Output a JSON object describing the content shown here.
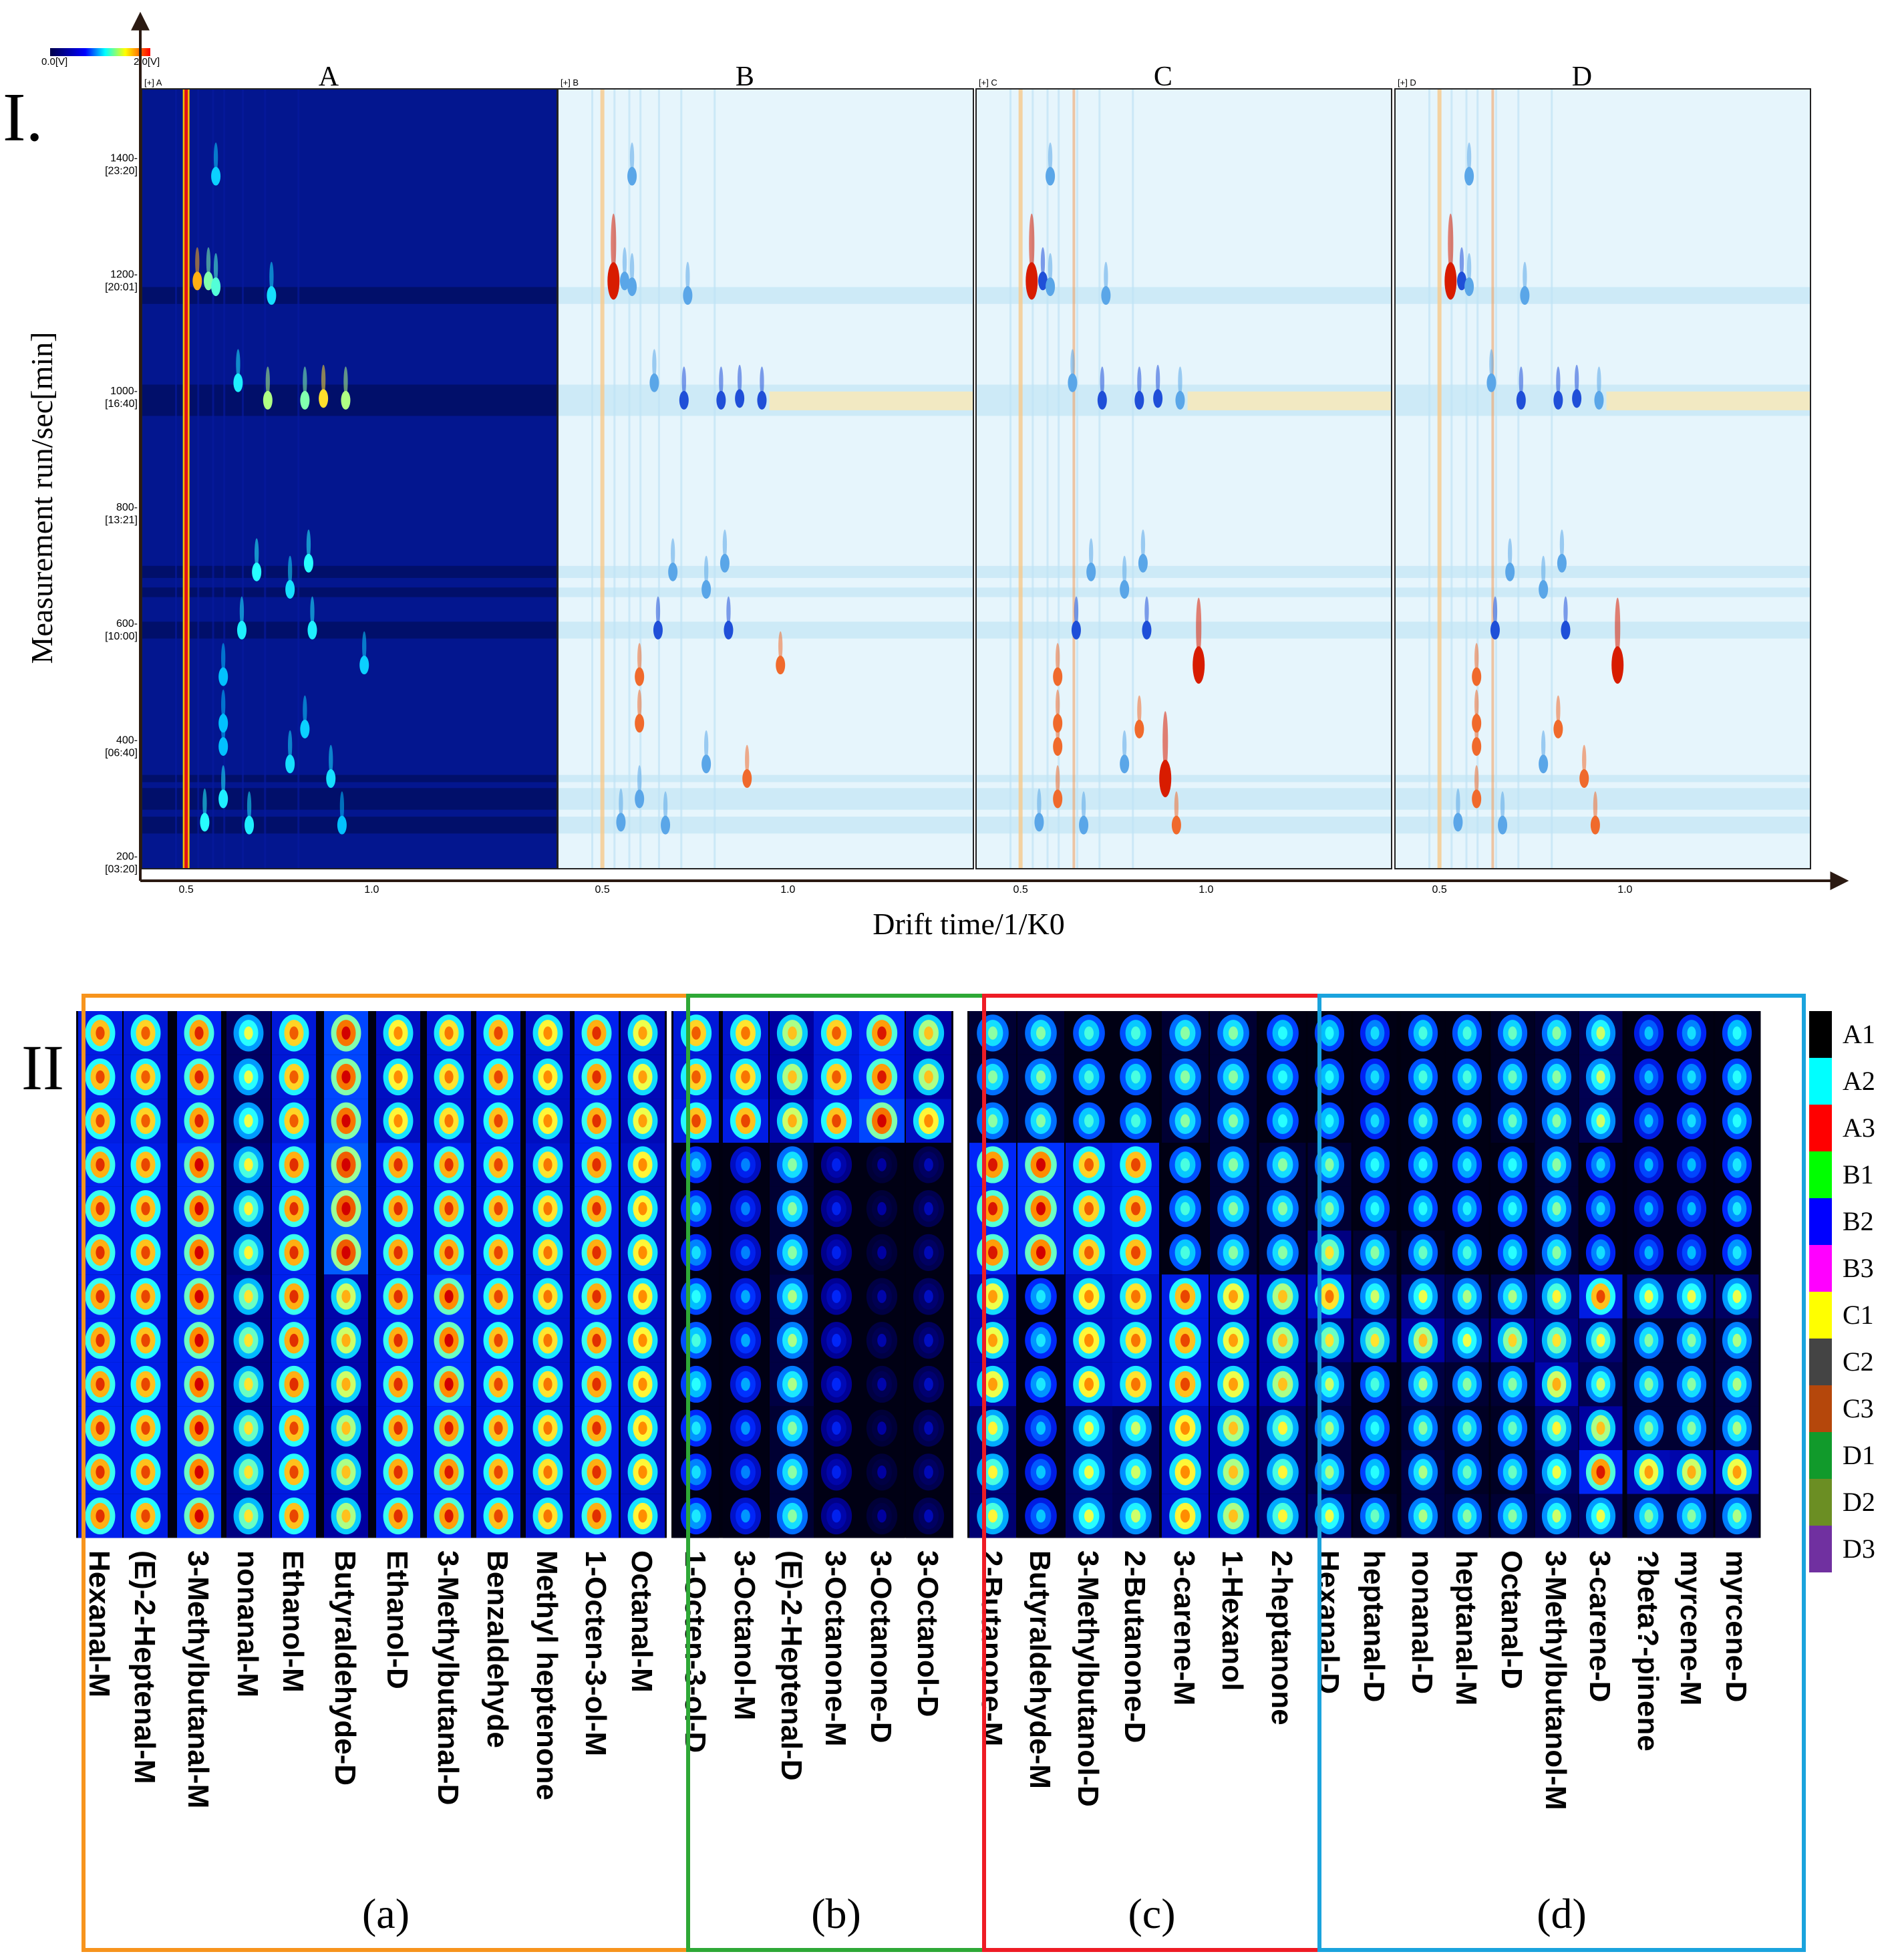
{
  "chart_data": [
    {
      "type": "heatmap",
      "panel_label": "I.",
      "description_kind": "GC-IMS topographic plots",
      "ylabel": "Measurement run/sec[min]",
      "xlabel": "Drift time/1/K0",
      "colorbar": {
        "min_label": "0.0[V]",
        "max_label": "2.0[V]"
      },
      "x_ticks": [
        "0.5",
        "1.0"
      ],
      "y_ticks": [
        {
          "value": 1400,
          "label": "1400-",
          "sub": "[23:20]"
        },
        {
          "value": 1200,
          "label": "1200-",
          "sub": "[20:01]"
        },
        {
          "value": 1000,
          "label": "1000-",
          "sub": "[16:40]"
        },
        {
          "value": 800,
          "label": "800-",
          "sub": "[13:21]"
        },
        {
          "value": 600,
          "label": "600-",
          "sub": "[10:00]"
        },
        {
          "value": 400,
          "label": "400-",
          "sub": "[06:40]"
        },
        {
          "value": 200,
          "label": "200-",
          "sub": "[03:20]"
        }
      ],
      "ylim": [
        180,
        1520
      ],
      "xlim": [
        0.38,
        1.5
      ],
      "reactant_ion_peak_drift": 0.5,
      "samples": [
        {
          "title": "A",
          "tag": "[+] A",
          "mode": "raw"
        },
        {
          "title": "B",
          "tag": "[+] B",
          "mode": "difference"
        },
        {
          "title": "C",
          "tag": "[+] C",
          "mode": "difference"
        },
        {
          "title": "D",
          "tag": "[+] D",
          "mode": "difference"
        }
      ],
      "peaks": [
        {
          "drift": 0.53,
          "rt": 1190,
          "A": 1.4,
          "B": 2.0,
          "C": 2.0,
          "D": 2.0
        },
        {
          "drift": 0.56,
          "rt": 1190,
          "A": 0.8,
          "B": -0.8,
          "C": -0.9,
          "D": -0.9
        },
        {
          "drift": 0.58,
          "rt": 1180,
          "A": 0.7,
          "B": -0.7,
          "C": -0.8,
          "D": -0.8
        },
        {
          "drift": 0.73,
          "rt": 1165,
          "A": 0.4,
          "B": -0.7,
          "C": -0.7,
          "D": -0.7
        },
        {
          "drift": 0.58,
          "rt": 1370,
          "A": 0.3,
          "B": -0.6,
          "C": -0.6,
          "D": -0.6
        },
        {
          "drift": 0.72,
          "rt": 985,
          "A": 0.9,
          "B": -0.9,
          "C": -0.9,
          "D": -0.9
        },
        {
          "drift": 0.82,
          "rt": 985,
          "A": 0.8,
          "B": -1.0,
          "C": -1.0,
          "D": -1.0
        },
        {
          "drift": 0.87,
          "rt": 988,
          "A": 1.2,
          "B": -1.0,
          "C": -1.0,
          "D": -1.0
        },
        {
          "drift": 0.93,
          "rt": 985,
          "A": 0.9,
          "B": -0.9,
          "C": -0.7,
          "D": -0.7
        },
        {
          "drift": 0.64,
          "rt": 1015,
          "A": 0.5,
          "B": -0.8,
          "C": -0.8,
          "D": -0.8
        },
        {
          "drift": 0.69,
          "rt": 690,
          "A": 0.6,
          "B": -0.7,
          "C": -0.7,
          "D": -0.7
        },
        {
          "drift": 0.83,
          "rt": 705,
          "A": 0.6,
          "B": -0.8,
          "C": -0.8,
          "D": -0.8
        },
        {
          "drift": 0.65,
          "rt": 590,
          "A": 0.5,
          "B": -1.0,
          "C": -1.0,
          "D": -1.0
        },
        {
          "drift": 0.84,
          "rt": 590,
          "A": 0.5,
          "B": -1.0,
          "C": -1.0,
          "D": -1.0
        },
        {
          "drift": 0.78,
          "rt": 660,
          "A": 0.4,
          "B": -0.6,
          "C": -0.6,
          "D": -0.6
        },
        {
          "drift": 0.98,
          "rt": 530,
          "A": 0.3,
          "B": 0.1,
          "C": 1.8,
          "D": 1.8
        },
        {
          "drift": 0.89,
          "rt": 335,
          "A": 0.4,
          "B": 0.1,
          "C": 1.6,
          "D": 1.2
        },
        {
          "drift": 0.92,
          "rt": 255,
          "A": 0.2,
          "B": 0.0,
          "C": 1.0,
          "D": 0.4
        },
        {
          "drift": 0.6,
          "rt": 510,
          "A": 0.2,
          "B": 0.1,
          "C": 0.9,
          "D": 0.7
        },
        {
          "drift": 0.6,
          "rt": 430,
          "A": 0.2,
          "B": 0.1,
          "C": 0.9,
          "D": 0.6
        },
        {
          "drift": 0.6,
          "rt": 390,
          "A": 0.2,
          "B": 0.0,
          "C": 0.8,
          "D": 0.6
        },
        {
          "drift": 0.6,
          "rt": 300,
          "A": 0.5,
          "B": -0.5,
          "C": 0.7,
          "D": 0.6
        },
        {
          "drift": 0.82,
          "rt": 420,
          "A": 0.3,
          "B": 0.0,
          "C": 0.8,
          "D": 0.7
        },
        {
          "drift": 0.78,
          "rt": 360,
          "A": 0.4,
          "B": -0.5,
          "C": -0.4,
          "D": -0.4
        },
        {
          "drift": 0.55,
          "rt": 260,
          "A": 0.6,
          "B": -0.5,
          "C": -0.6,
          "D": -0.6
        },
        {
          "drift": 0.67,
          "rt": 255,
          "A": 0.5,
          "B": -0.4,
          "C": -0.5,
          "D": -0.5
        }
      ]
    },
    {
      "type": "heatmap",
      "panel_label": "II",
      "description_kind": "Gallery plot fingerprint",
      "rows": [
        "A1",
        "A2",
        "A3",
        "B1",
        "B2",
        "B3",
        "C1",
        "C2",
        "C3",
        "D1",
        "D2",
        "D3"
      ],
      "row_colors": [
        "#000000",
        "#00ffff",
        "#ff0000",
        "#00ff00",
        "#0000ff",
        "#ff00ff",
        "#ffff00",
        "#444444",
        "#b5470b",
        "#119a2b",
        "#6b8e23",
        "#7030a0"
      ],
      "groups": [
        {
          "label": "(a)",
          "border_color": "#f7941d",
          "compounds": [
            "Hexanal-M",
            "(E)-2-Heptenal-M",
            "3-Methylbutanal-M",
            "nonanal-M",
            "Ethanol-M",
            "Butyraldehyde-D",
            "Ethanol-D",
            "3-Methylbutanal-D",
            "Benzaldehyde",
            "Methyl heptenone",
            "1-Octen-3-ol-M",
            "Octanal-M"
          ],
          "intensity": [
            [
              0.82,
              0.82,
              0.82,
              0.84,
              0.84,
              0.84,
              0.84,
              0.84,
              0.84,
              0.84,
              0.84,
              0.84
            ],
            [
              0.8,
              0.8,
              0.8,
              0.82,
              0.82,
              0.82,
              0.82,
              0.82,
              0.82,
              0.82,
              0.82,
              0.82
            ],
            [
              0.85,
              0.85,
              0.85,
              0.88,
              0.88,
              0.88,
              0.88,
              0.88,
              0.88,
              0.88,
              0.88,
              0.88
            ],
            [
              0.62,
              0.62,
              0.62,
              0.64,
              0.64,
              0.64,
              0.66,
              0.66,
              0.66,
              0.66,
              0.66,
              0.66
            ],
            [
              0.8,
              0.8,
              0.8,
              0.84,
              0.84,
              0.84,
              0.84,
              0.84,
              0.84,
              0.82,
              0.82,
              0.82
            ],
            [
              0.9,
              0.9,
              0.9,
              0.92,
              0.92,
              0.92,
              0.72,
              0.72,
              0.72,
              0.7,
              0.7,
              0.7
            ],
            [
              0.76,
              0.76,
              0.76,
              0.84,
              0.84,
              0.84,
              0.84,
              0.84,
              0.84,
              0.84,
              0.84,
              0.84
            ],
            [
              0.78,
              0.78,
              0.78,
              0.84,
              0.84,
              0.84,
              0.88,
              0.88,
              0.88,
              0.86,
              0.86,
              0.86
            ],
            [
              0.82,
              0.82,
              0.82,
              0.82,
              0.82,
              0.82,
              0.82,
              0.82,
              0.82,
              0.82,
              0.82,
              0.82
            ],
            [
              0.76,
              0.76,
              0.76,
              0.78,
              0.78,
              0.78,
              0.78,
              0.78,
              0.78,
              0.78,
              0.78,
              0.78
            ],
            [
              0.84,
              0.84,
              0.84,
              0.84,
              0.84,
              0.84,
              0.84,
              0.84,
              0.84,
              0.84,
              0.84,
              0.84
            ],
            [
              0.74,
              0.74,
              0.74,
              0.76,
              0.76,
              0.76,
              0.76,
              0.76,
              0.76,
              0.76,
              0.76,
              0.76
            ]
          ]
        },
        {
          "label": "(b)",
          "border_color": "#2ea836",
          "compounds": [
            "1-Octen-3-ol-D",
            "3-Octanol-M",
            "(E)-2-Heptenal-D",
            "3-Octanone-M",
            "3-Octanone-D",
            "3-Octanol-D"
          ],
          "intensity": [
            [
              0.8,
              0.8,
              0.82,
              0.44,
              0.44,
              0.44,
              0.5,
              0.52,
              0.5,
              0.46,
              0.44,
              0.46
            ],
            [
              0.78,
              0.78,
              0.82,
              0.32,
              0.32,
              0.32,
              0.36,
              0.36,
              0.36,
              0.34,
              0.32,
              0.34
            ],
            [
              0.7,
              0.7,
              0.72,
              0.56,
              0.56,
              0.56,
              0.58,
              0.58,
              0.58,
              0.56,
              0.56,
              0.56
            ],
            [
              0.8,
              0.8,
              0.82,
              0.2,
              0.2,
              0.2,
              0.22,
              0.22,
              0.22,
              0.2,
              0.2,
              0.2
            ],
            [
              0.86,
              0.86,
              0.9,
              0.06,
              0.06,
              0.06,
              0.08,
              0.08,
              0.08,
              0.06,
              0.06,
              0.06
            ],
            [
              0.7,
              0.7,
              0.76,
              0.1,
              0.1,
              0.1,
              0.12,
              0.12,
              0.12,
              0.1,
              0.1,
              0.1
            ]
          ]
        },
        {
          "label": "(c)",
          "border_color": "#ee1c25",
          "compounds": [
            "2-Butanone-M",
            "Butyraldehyde-M",
            "3-Methylbutanol-D",
            "2-Butanone-D",
            "3-carene-M",
            "1-Hexanol",
            "2-heptanone"
          ],
          "intensity": [
            [
              0.56,
              0.56,
              0.56,
              0.86,
              0.86,
              0.86,
              0.74,
              0.74,
              0.74,
              0.64,
              0.64,
              0.64
            ],
            [
              0.56,
              0.56,
              0.56,
              0.88,
              0.88,
              0.88,
              0.46,
              0.46,
              0.46,
              0.4,
              0.4,
              0.4
            ],
            [
              0.52,
              0.52,
              0.52,
              0.8,
              0.8,
              0.8,
              0.76,
              0.76,
              0.76,
              0.62,
              0.62,
              0.62
            ],
            [
              0.52,
              0.52,
              0.52,
              0.82,
              0.82,
              0.82,
              0.78,
              0.78,
              0.78,
              0.6,
              0.6,
              0.6
            ],
            [
              0.56,
              0.56,
              0.56,
              0.52,
              0.52,
              0.52,
              0.82,
              0.82,
              0.82,
              0.76,
              0.76,
              0.76
            ],
            [
              0.56,
              0.56,
              0.56,
              0.56,
              0.56,
              0.56,
              0.74,
              0.74,
              0.74,
              0.7,
              0.7,
              0.7
            ],
            [
              0.5,
              0.5,
              0.5,
              0.56,
              0.56,
              0.56,
              0.7,
              0.7,
              0.7,
              0.64,
              0.64,
              0.64
            ]
          ]
        },
        {
          "label": "(d)",
          "border_color": "#1aa3dd",
          "compounds": [
            "Hexanal-D",
            "heptanal-D",
            "nonanal-D",
            "heptanal-M",
            "Octanal-D",
            "3-Methylbutanol-M",
            "3-carene-D",
            "?beta?-pinene",
            "myrcene-M",
            "myrcene-D"
          ],
          "intensity": [
            [
              0.5,
              0.5,
              0.5,
              0.56,
              0.56,
              0.66,
              0.78,
              0.66,
              0.6,
              0.58,
              0.58,
              0.62
            ],
            [
              0.44,
              0.44,
              0.44,
              0.5,
              0.5,
              0.56,
              0.6,
              0.66,
              0.52,
              0.5,
              0.5,
              0.54
            ],
            [
              0.52,
              0.52,
              0.52,
              0.5,
              0.5,
              0.54,
              0.62,
              0.7,
              0.58,
              0.56,
              0.58,
              0.58
            ],
            [
              0.52,
              0.52,
              0.52,
              0.48,
              0.48,
              0.52,
              0.58,
              0.62,
              0.56,
              0.54,
              0.54,
              0.56
            ],
            [
              0.54,
              0.54,
              0.54,
              0.5,
              0.5,
              0.5,
              0.58,
              0.68,
              0.56,
              0.54,
              0.54,
              0.56
            ],
            [
              0.56,
              0.56,
              0.56,
              0.56,
              0.56,
              0.56,
              0.64,
              0.66,
              0.72,
              0.64,
              0.62,
              0.6
            ],
            [
              0.6,
              0.6,
              0.6,
              0.44,
              0.44,
              0.44,
              0.82,
              0.64,
              0.6,
              0.7,
              0.86,
              0.62
            ],
            [
              0.4,
              0.4,
              0.4,
              0.38,
              0.38,
              0.38,
              0.62,
              0.56,
              0.56,
              0.56,
              0.74,
              0.56
            ],
            [
              0.44,
              0.44,
              0.44,
              0.38,
              0.38,
              0.38,
              0.62,
              0.56,
              0.56,
              0.56,
              0.72,
              0.56
            ],
            [
              0.5,
              0.5,
              0.5,
              0.46,
              0.46,
              0.46,
              0.62,
              0.58,
              0.58,
              0.58,
              0.74,
              0.58
            ]
          ]
        }
      ]
    }
  ]
}
